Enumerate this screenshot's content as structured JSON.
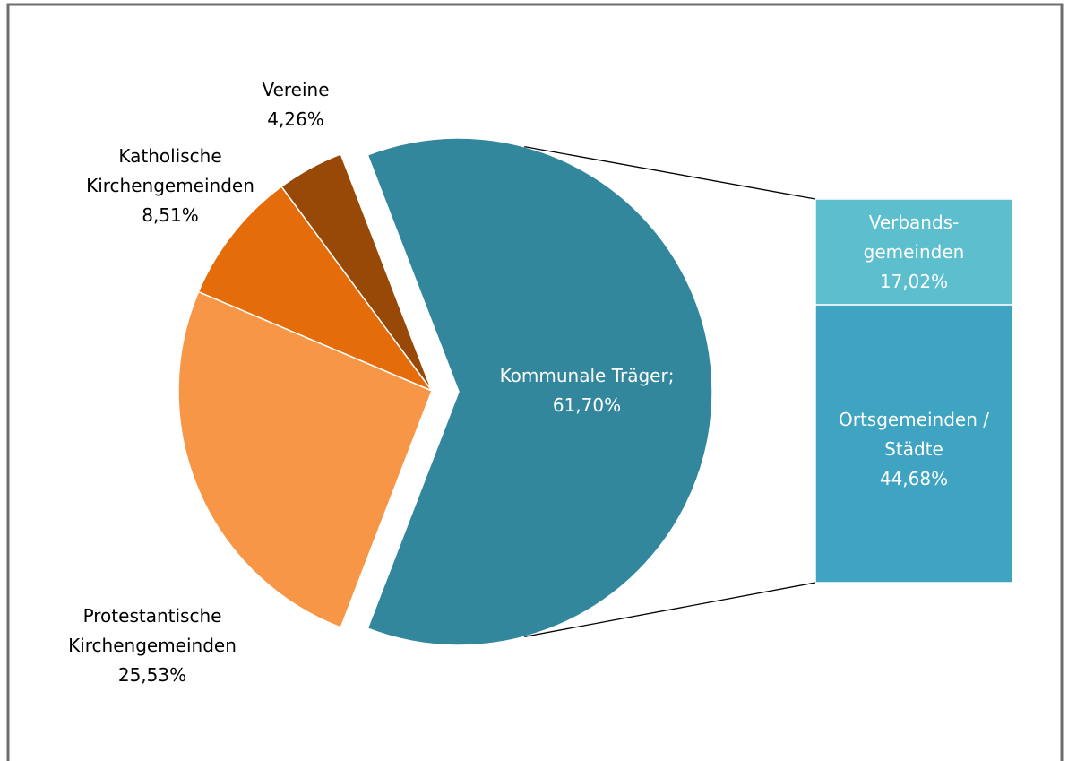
{
  "chart_data": {
    "type": "bar-of-pie",
    "categories": [
      "Kommunale Träger",
      "Vereine",
      "Katholische Kirchengemeinden",
      "Protestantische Kirchengemeinden"
    ],
    "values": [
      61.7,
      4.26,
      8.51,
      25.53
    ],
    "value_labels": [
      "61,70%",
      "4,26%",
      "8,51%",
      "25,53%"
    ],
    "label_separator": "; ",
    "colors": [
      "#33879c",
      "#984807",
      "#e46c0a",
      "#f79646"
    ],
    "breakdown": {
      "categories": [
        "Verbands­gemeinden",
        "Ortsgemeinden / Städte"
      ],
      "values": [
        17.02,
        44.68
      ],
      "value_labels": [
        "17,02%",
        "44,68%"
      ],
      "colors": [
        "#5dbecd",
        "#3ea4c1"
      ]
    }
  }
}
